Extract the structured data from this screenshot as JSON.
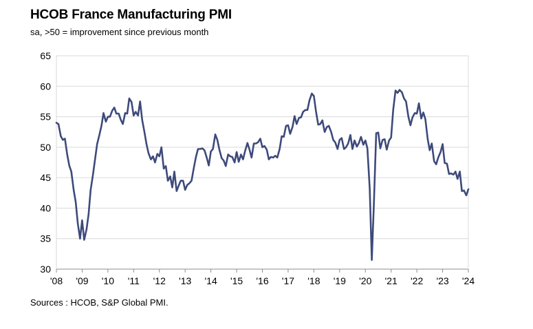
{
  "title": "HCOB France Manufacturing PMI",
  "subtitle": "sa, >50 = improvement since previous month",
  "source": "Sources : HCOB, S&P Global PMI.",
  "chart_data": {
    "type": "line",
    "ylim": [
      30,
      65
    ],
    "yticks": [
      30,
      35,
      40,
      45,
      50,
      55,
      60,
      65
    ],
    "xlim": [
      2008,
      2024
    ],
    "xticks": [
      2008,
      2009,
      2010,
      2011,
      2012,
      2013,
      2014,
      2015,
      2016,
      2017,
      2018,
      2019,
      2020,
      2021,
      2022,
      2023,
      2024
    ],
    "xtick_labels": [
      "'08",
      "'09",
      "'10",
      "'11",
      "'12",
      "'13",
      "'14",
      "'15",
      "'16",
      "'17",
      "'18",
      "'19",
      "'20",
      "'21",
      "'22",
      "'23",
      "'24"
    ],
    "grid": "horizontal",
    "line_color": "#3d4a7a",
    "series": [
      {
        "values": [
          [
            2008.0,
            54.0
          ],
          [
            2008.08,
            53.8
          ],
          [
            2008.17,
            51.8
          ],
          [
            2008.25,
            51.2
          ],
          [
            2008.33,
            51.4
          ],
          [
            2008.42,
            48.8
          ],
          [
            2008.5,
            47.0
          ],
          [
            2008.58,
            46.0
          ],
          [
            2008.67,
            43.0
          ],
          [
            2008.75,
            41.0
          ],
          [
            2008.83,
            37.5
          ],
          [
            2008.92,
            35.0
          ],
          [
            2009.0,
            38.0
          ],
          [
            2009.08,
            34.8
          ],
          [
            2009.17,
            36.5
          ],
          [
            2009.25,
            39.0
          ],
          [
            2009.33,
            43.0
          ],
          [
            2009.42,
            45.5
          ],
          [
            2009.5,
            48.0
          ],
          [
            2009.58,
            50.5
          ],
          [
            2009.67,
            52.0
          ],
          [
            2009.75,
            53.5
          ],
          [
            2009.83,
            55.6
          ],
          [
            2009.92,
            54.2
          ],
          [
            2010.0,
            55.0
          ],
          [
            2010.08,
            55.0
          ],
          [
            2010.17,
            56.0
          ],
          [
            2010.25,
            56.5
          ],
          [
            2010.33,
            55.5
          ],
          [
            2010.42,
            55.5
          ],
          [
            2010.5,
            54.5
          ],
          [
            2010.58,
            53.8
          ],
          [
            2010.67,
            55.6
          ],
          [
            2010.75,
            55.5
          ],
          [
            2010.83,
            58.0
          ],
          [
            2010.92,
            57.4
          ],
          [
            2011.0,
            55.2
          ],
          [
            2011.08,
            55.8
          ],
          [
            2011.17,
            55.2
          ],
          [
            2011.25,
            57.5
          ],
          [
            2011.33,
            54.5
          ],
          [
            2011.42,
            52.5
          ],
          [
            2011.5,
            50.5
          ],
          [
            2011.58,
            49.0
          ],
          [
            2011.67,
            48.0
          ],
          [
            2011.75,
            48.5
          ],
          [
            2011.83,
            47.5
          ],
          [
            2011.92,
            48.9
          ],
          [
            2012.0,
            48.5
          ],
          [
            2012.08,
            50.0
          ],
          [
            2012.17,
            46.5
          ],
          [
            2012.25,
            46.9
          ],
          [
            2012.33,
            44.5
          ],
          [
            2012.42,
            45.2
          ],
          [
            2012.5,
            43.4
          ],
          [
            2012.58,
            46.0
          ],
          [
            2012.67,
            42.8
          ],
          [
            2012.75,
            43.7
          ],
          [
            2012.83,
            44.5
          ],
          [
            2012.92,
            44.5
          ],
          [
            2013.0,
            43.0
          ],
          [
            2013.08,
            43.8
          ],
          [
            2013.17,
            44.1
          ],
          [
            2013.25,
            44.5
          ],
          [
            2013.33,
            46.4
          ],
          [
            2013.42,
            48.4
          ],
          [
            2013.5,
            49.7
          ],
          [
            2013.58,
            49.7
          ],
          [
            2013.67,
            49.8
          ],
          [
            2013.75,
            49.5
          ],
          [
            2013.83,
            48.4
          ],
          [
            2013.92,
            47.0
          ],
          [
            2014.0,
            49.3
          ],
          [
            2014.08,
            49.7
          ],
          [
            2014.17,
            52.1
          ],
          [
            2014.25,
            51.2
          ],
          [
            2014.33,
            49.6
          ],
          [
            2014.42,
            48.2
          ],
          [
            2014.5,
            47.8
          ],
          [
            2014.58,
            46.9
          ],
          [
            2014.67,
            48.8
          ],
          [
            2014.75,
            48.5
          ],
          [
            2014.83,
            48.4
          ],
          [
            2014.92,
            47.5
          ],
          [
            2015.0,
            49.2
          ],
          [
            2015.08,
            47.6
          ],
          [
            2015.17,
            48.8
          ],
          [
            2015.25,
            48.0
          ],
          [
            2015.33,
            49.4
          ],
          [
            2015.42,
            50.7
          ],
          [
            2015.5,
            49.6
          ],
          [
            2015.58,
            48.3
          ],
          [
            2015.67,
            50.6
          ],
          [
            2015.75,
            50.6
          ],
          [
            2015.83,
            50.8
          ],
          [
            2015.92,
            51.4
          ],
          [
            2016.0,
            50.0
          ],
          [
            2016.08,
            50.2
          ],
          [
            2016.17,
            49.6
          ],
          [
            2016.25,
            48.0
          ],
          [
            2016.33,
            48.4
          ],
          [
            2016.42,
            48.3
          ],
          [
            2016.5,
            48.6
          ],
          [
            2016.58,
            48.3
          ],
          [
            2016.67,
            49.7
          ],
          [
            2016.75,
            51.8
          ],
          [
            2016.83,
            51.7
          ],
          [
            2016.92,
            53.5
          ],
          [
            2017.0,
            53.6
          ],
          [
            2017.08,
            52.2
          ],
          [
            2017.17,
            53.3
          ],
          [
            2017.25,
            55.1
          ],
          [
            2017.33,
            53.8
          ],
          [
            2017.42,
            54.8
          ],
          [
            2017.5,
            54.9
          ],
          [
            2017.58,
            55.8
          ],
          [
            2017.67,
            56.1
          ],
          [
            2017.75,
            56.1
          ],
          [
            2017.83,
            57.7
          ],
          [
            2017.92,
            58.8
          ],
          [
            2018.0,
            58.4
          ],
          [
            2018.08,
            55.9
          ],
          [
            2018.17,
            53.7
          ],
          [
            2018.25,
            53.8
          ],
          [
            2018.33,
            54.4
          ],
          [
            2018.42,
            52.5
          ],
          [
            2018.5,
            53.3
          ],
          [
            2018.58,
            53.5
          ],
          [
            2018.67,
            52.5
          ],
          [
            2018.75,
            51.2
          ],
          [
            2018.83,
            50.8
          ],
          [
            2018.92,
            49.7
          ],
          [
            2019.0,
            51.2
          ],
          [
            2019.08,
            51.5
          ],
          [
            2019.17,
            49.7
          ],
          [
            2019.25,
            50.0
          ],
          [
            2019.33,
            50.6
          ],
          [
            2019.42,
            52.0
          ],
          [
            2019.5,
            49.7
          ],
          [
            2019.58,
            51.1
          ],
          [
            2019.67,
            50.1
          ],
          [
            2019.75,
            50.7
          ],
          [
            2019.83,
            51.7
          ],
          [
            2019.92,
            50.4
          ],
          [
            2020.0,
            51.1
          ],
          [
            2020.08,
            49.8
          ],
          [
            2020.17,
            43.2
          ],
          [
            2020.25,
            31.5
          ],
          [
            2020.33,
            40.6
          ],
          [
            2020.42,
            52.3
          ],
          [
            2020.5,
            52.4
          ],
          [
            2020.58,
            49.8
          ],
          [
            2020.67,
            51.2
          ],
          [
            2020.75,
            51.3
          ],
          [
            2020.83,
            49.6
          ],
          [
            2020.92,
            51.1
          ],
          [
            2021.0,
            51.6
          ],
          [
            2021.08,
            56.1
          ],
          [
            2021.17,
            59.3
          ],
          [
            2021.25,
            58.9
          ],
          [
            2021.33,
            59.4
          ],
          [
            2021.42,
            59.0
          ],
          [
            2021.5,
            58.0
          ],
          [
            2021.58,
            57.5
          ],
          [
            2021.67,
            55.0
          ],
          [
            2021.75,
            53.6
          ],
          [
            2021.83,
            54.9
          ],
          [
            2021.92,
            55.6
          ],
          [
            2022.0,
            55.5
          ],
          [
            2022.08,
            57.2
          ],
          [
            2022.17,
            54.7
          ],
          [
            2022.25,
            55.7
          ],
          [
            2022.33,
            54.6
          ],
          [
            2022.42,
            51.4
          ],
          [
            2022.5,
            49.5
          ],
          [
            2022.58,
            50.6
          ],
          [
            2022.67,
            47.7
          ],
          [
            2022.75,
            47.2
          ],
          [
            2022.83,
            48.3
          ],
          [
            2022.92,
            49.2
          ],
          [
            2023.0,
            50.5
          ],
          [
            2023.08,
            47.4
          ],
          [
            2023.17,
            47.3
          ],
          [
            2023.25,
            45.6
          ],
          [
            2023.33,
            45.7
          ],
          [
            2023.42,
            45.5
          ],
          [
            2023.5,
            46.0
          ],
          [
            2023.58,
            44.8
          ],
          [
            2023.67,
            46.0
          ],
          [
            2023.75,
            42.8
          ],
          [
            2023.83,
            42.9
          ],
          [
            2023.92,
            42.1
          ],
          [
            2024.0,
            43.1
          ]
        ]
      }
    ]
  }
}
